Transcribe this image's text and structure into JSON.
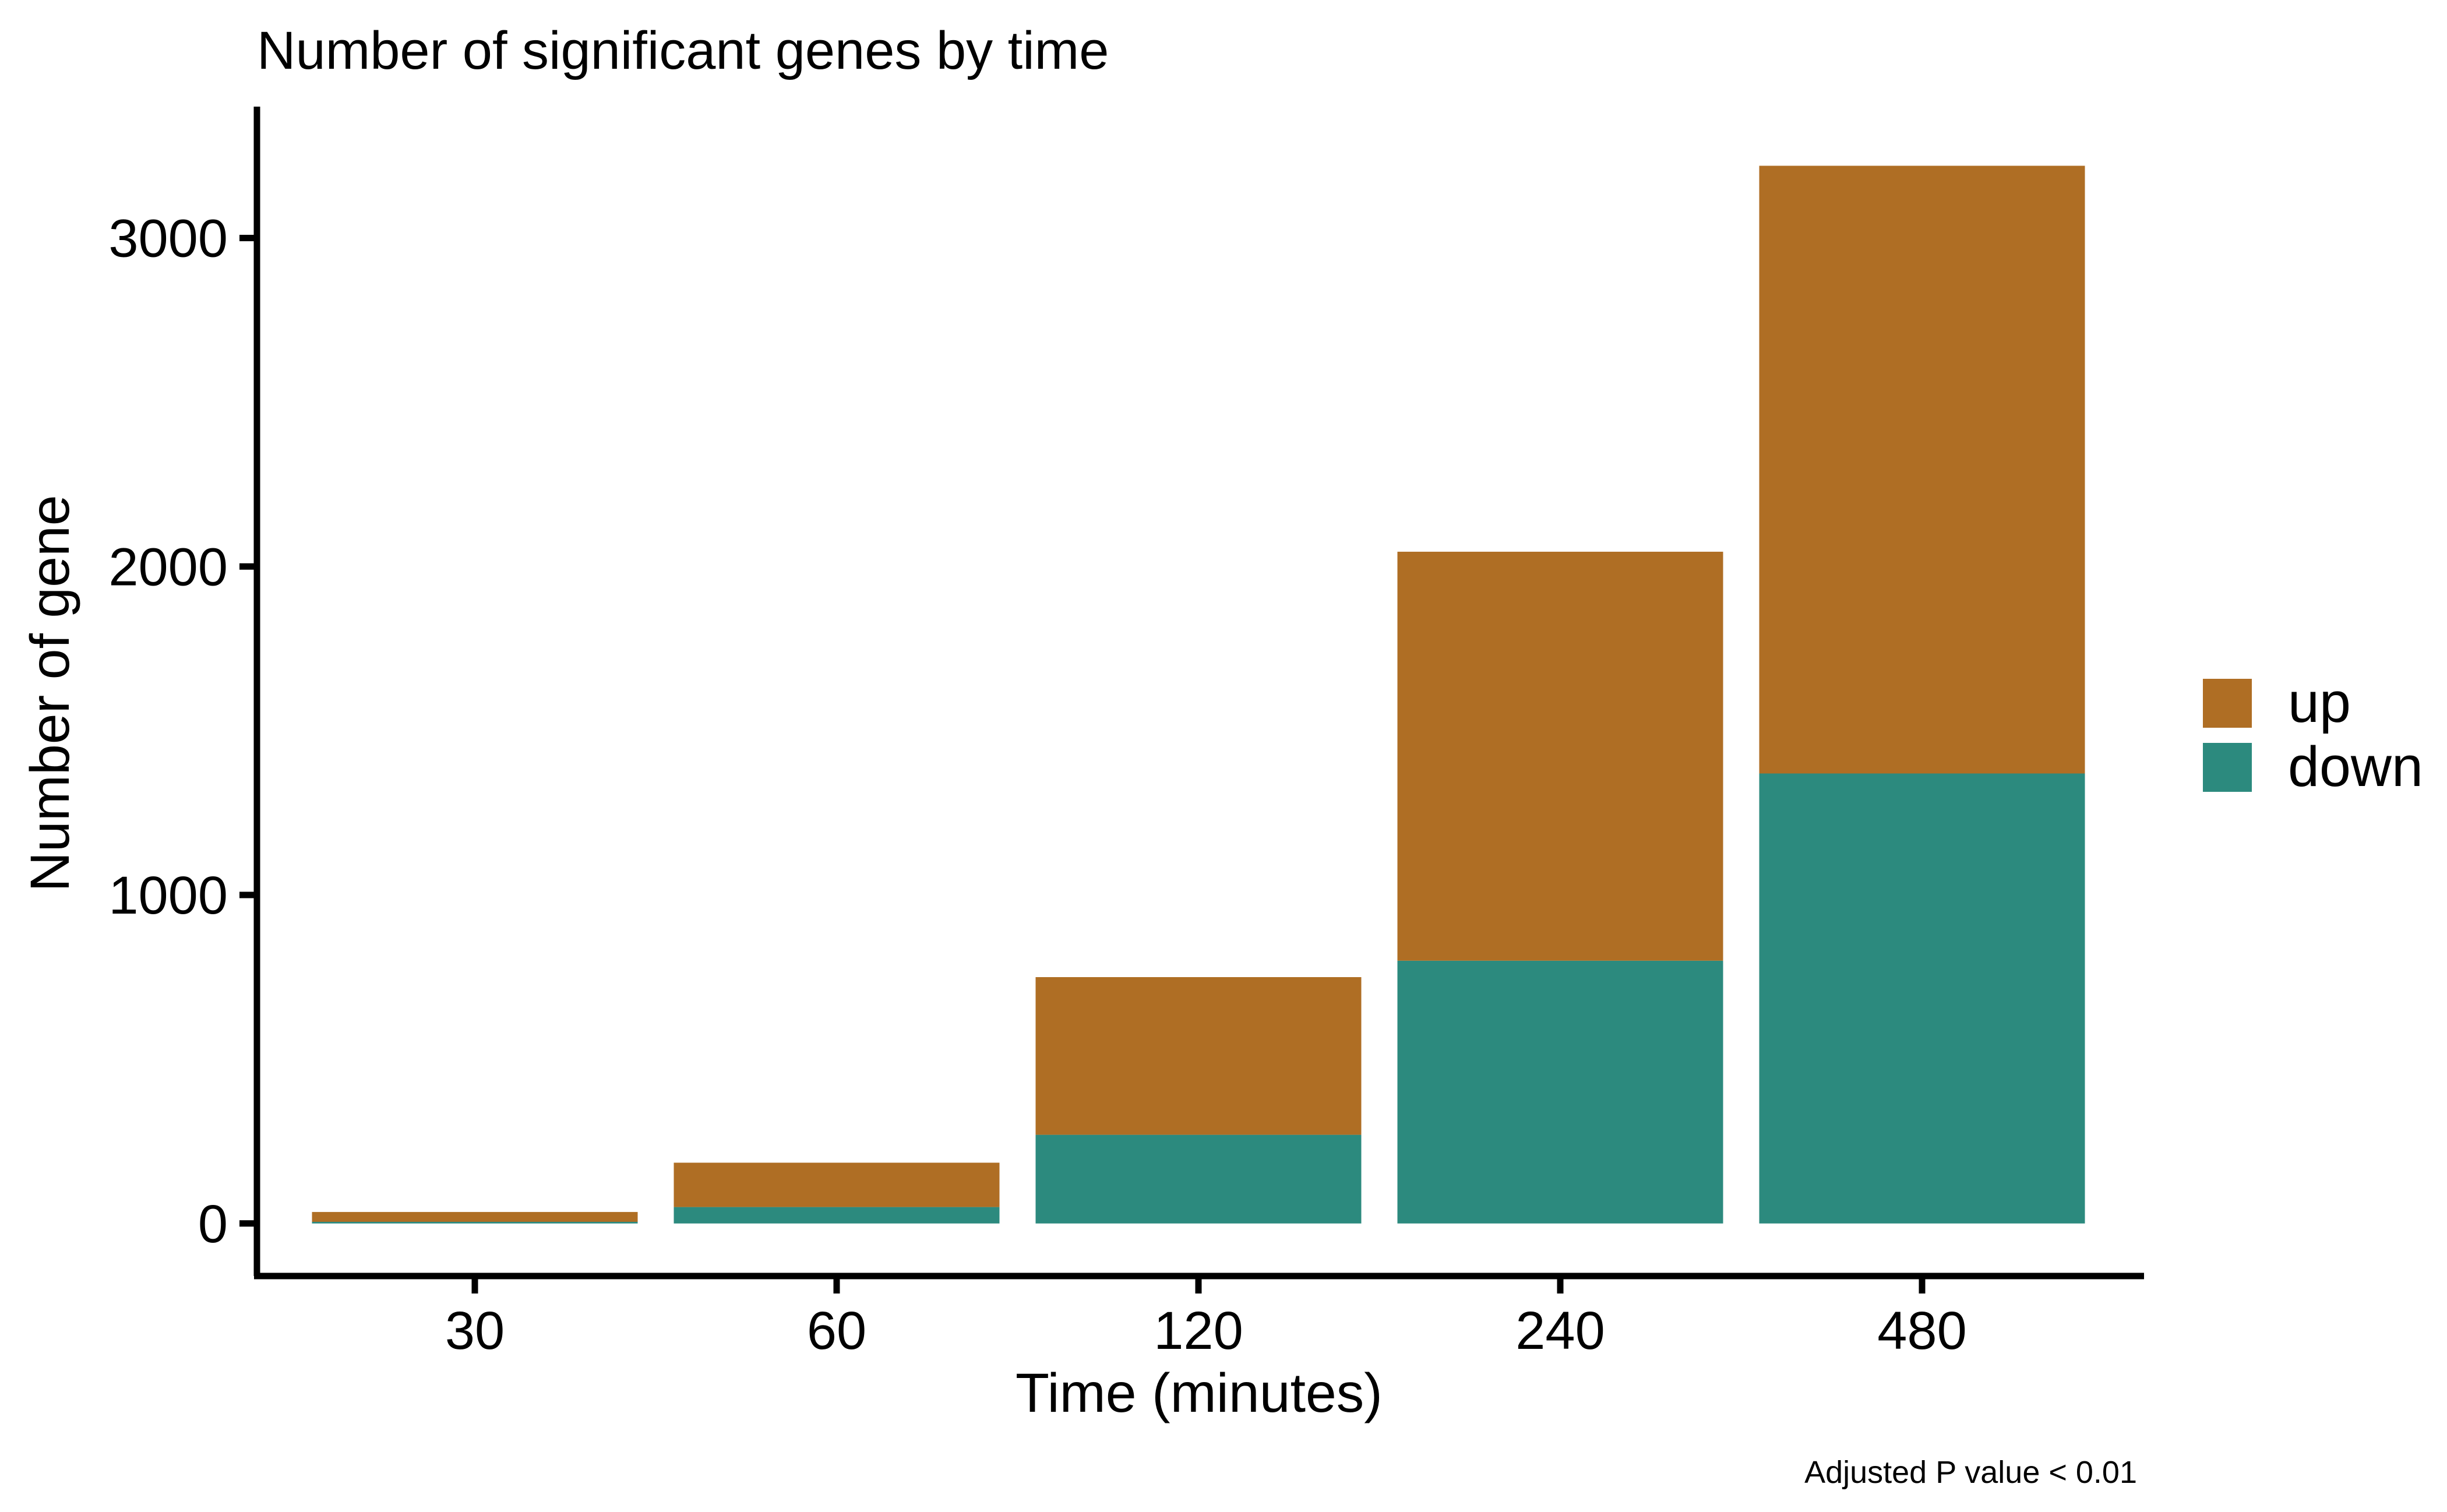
{
  "chart_data": {
    "type": "bar",
    "stacked": true,
    "title": "Number of significant genes by time",
    "xlabel": "Time (minutes)",
    "ylabel": "Number of gene",
    "caption": "Adjusted P value < 0.01",
    "categories": [
      "30",
      "60",
      "120",
      "240",
      "480"
    ],
    "series": [
      {
        "name": "down",
        "color": "#2C8A7E",
        "values": [
          5,
          50,
          270,
          800,
          1370
        ]
      },
      {
        "name": "up",
        "color": "#AF6E24",
        "values": [
          30,
          135,
          480,
          1245,
          1850
        ]
      }
    ],
    "legend_order": [
      "up",
      "down"
    ],
    "ylim": [
      -160,
      3400
    ],
    "yticks": [
      0,
      1000,
      2000,
      3000
    ],
    "grid": false,
    "legend_position": "right"
  }
}
